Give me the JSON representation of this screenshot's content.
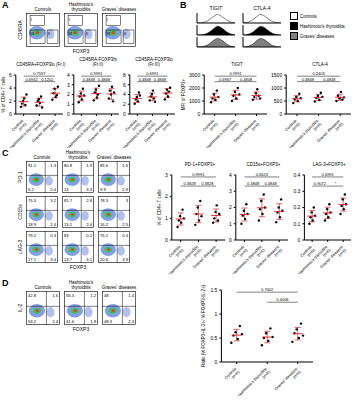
{
  "panels": [
    "A",
    "B",
    "C",
    "D"
  ],
  "flow": [
    {
      "samples": [
        "Controls",
        "Hashimoto's thyroiditis",
        "Graves' diseases"
      ],
      "x_label": "FOXP3",
      "rows": [
        {
          "y_label": "CD45RA",
          "gates": [
            "I",
            "II",
            "III"
          ]
        }
      ]
    },
    {
      "samples": [
        "Controls",
        "Hashimoto's thyroiditis",
        "Graves' diseases"
      ],
      "x_label": "FOXP3",
      "rows": [
        {
          "y_label": "PD-1",
          "quadrants": [
            [
              91.1,
              1.3,
              5.2,
              2.4
            ],
            [
              80.8,
              1.9,
              14.0,
              3.3
            ],
            [
              85.6,
              1.6,
              9.9,
              2.9
            ]
          ]
        },
        {
          "y_label": "CD15s",
          "quadrants": [
            [
              75.5,
              3.2,
              18.9,
              2.4
            ],
            [
              81.7,
              2.8,
              13.1,
              2.4
            ],
            [
              78.3,
              3.0,
              16.2,
              2.5
            ]
          ]
        },
        {
          "y_label": "LAG-3",
          "quadrants": [
            [
              79.2,
              0.3,
              17.1,
              3.4
            ],
            [
              83.0,
              0.2,
              13.7,
              3.1
            ],
            [
              75.1,
              0.4,
              20.6,
              3.9
            ]
          ]
        }
      ]
    },
    {
      "samples": [
        "Controls",
        "Hashimoto's thyroiditis",
        "Graves' diseases"
      ],
      "x_label": "FOXP3",
      "rows": [
        {
          "y_label": "IL-2",
          "quadrants": [
            [
              42.8,
              1.6,
              53.2,
              2.4
            ],
            [
              55.3,
              1.2,
              41.6,
              1.9
            ],
            [
              48.0,
              1.4,
              48.3,
              2.3
            ]
          ]
        }
      ]
    }
  ],
  "histograms": [
    {
      "type": "area",
      "title": "TIGIT",
      "tick_labels": false,
      "x": [
        1,
        2,
        3,
        4,
        5,
        6,
        7,
        8,
        9,
        10,
        11,
        12
      ],
      "xlim": [
        1,
        12
      ],
      "ylim": [
        0,
        10
      ],
      "series": [
        {
          "name": "Controls",
          "color": "#ffffff",
          "values": [
            0,
            0.2,
            0.8,
            2,
            4.5,
            7,
            8.5,
            7,
            4.5,
            2,
            0.7,
            0.1
          ]
        },
        {
          "name": "Hashimoto's thyroiditis",
          "color": "#000000",
          "values": [
            0,
            0.1,
            0.6,
            1.8,
            4,
            6.8,
            8.8,
            7.4,
            4.8,
            2.2,
            0.8,
            0.1
          ]
        },
        {
          "name": "Graves' diseases",
          "color": "#808080",
          "values": [
            0,
            0.2,
            0.7,
            1.9,
            4.3,
            7.1,
            8.6,
            7.2,
            4.6,
            2.1,
            0.7,
            0.1
          ]
        }
      ]
    },
    {
      "type": "area",
      "title": "CTLA-4",
      "tick_labels": false,
      "x": [
        1,
        2,
        3,
        4,
        5,
        6,
        7,
        8,
        9,
        10,
        11,
        12
      ],
      "xlim": [
        1,
        12
      ],
      "ylim": [
        0,
        10
      ],
      "series": [
        {
          "name": "Controls",
          "color": "#ffffff",
          "values": [
            0,
            0.4,
            1.5,
            3.5,
            6.5,
            8.5,
            7.5,
            5,
            2.5,
            1,
            0.3,
            0
          ]
        },
        {
          "name": "Hashimoto's thyroiditis",
          "color": "#000000",
          "values": [
            0,
            0.3,
            1.3,
            3.2,
            6.2,
            8.6,
            7.8,
            5.3,
            2.7,
            1.1,
            0.3,
            0
          ]
        },
        {
          "name": "Graves' diseases",
          "color": "#808080",
          "values": [
            0,
            0.3,
            1.4,
            3.3,
            6.4,
            8.4,
            7.7,
            5.2,
            2.6,
            1,
            0.3,
            0
          ]
        }
      ]
    }
  ],
  "chart_data": [
    {
      "type": "scatter",
      "title": "CD45RA+FOXP3lo (Fr.I)",
      "y_label": "% of CD4+ T cells",
      "categories": [
        "Controls (n=6)",
        "Hashimoto's thyroiditis (n=6)",
        "Graves' diseases (n=6)"
      ],
      "color": "#000000",
      "values": [
        [
          1.1,
          1.6,
          2.0,
          2.4,
          1.4,
          3.0
        ],
        [
          1.3,
          2.0,
          2.3,
          1.7,
          2.7,
          1.0
        ],
        [
          2.2,
          3.2,
          3.9,
          2.6,
          2.9,
          4.2
        ]
      ],
      "means": [
        1.9,
        1.8,
        3.2
      ],
      "sd": [
        0.7,
        0.6,
        0.7
      ],
      "ylim": [
        0,
        6
      ],
      "yticks": [
        0,
        2,
        4,
        6
      ],
      "annotations": [
        {
          "from": 0,
          "to": 2,
          "label": "0.7597"
        },
        {
          "from": 0,
          "to": 1,
          "label": "0.6942"
        },
        {
          "from": 1,
          "to": 2,
          "label": "0.1202"
        }
      ]
    },
    {
      "type": "scatter",
      "title": "CD45RA-FOXP3hi (Fr.II)",
      "categories": [
        "Controls (n=6)",
        "Hashimoto's thyroiditis (n=6)",
        "Graves' diseases (n=6)"
      ],
      "color": "#000000",
      "values": [
        [
          1.2,
          1.8,
          2.1,
          1.5,
          2.6,
          1.9
        ],
        [
          1.4,
          2.2,
          2.5,
          1.7,
          2.0,
          2.9
        ],
        [
          1.6,
          2.4,
          2.0,
          2.8,
          1.3,
          2.2
        ]
      ],
      "means": [
        1.85,
        2.1,
        2.05
      ],
      "sd": [
        0.5,
        0.55,
        0.55
      ],
      "ylim": [
        0,
        4
      ],
      "yticks": [
        0,
        1,
        2,
        3,
        4
      ],
      "annotations": [
        {
          "from": 0,
          "to": 2,
          "label": "0.9991"
        },
        {
          "from": 0,
          "to": 1,
          "label": "0.4848"
        },
        {
          "from": 1,
          "to": 2,
          "label": "0.4848"
        }
      ]
    },
    {
      "type": "scatter",
      "title": "CD45RA-FOXP3lo (Fr.III)",
      "categories": [
        "Controls (n=6)",
        "Hashimoto's thyroiditis (n=6)",
        "Graves' diseases (n=6)"
      ],
      "color": "#000000",
      "values": [
        [
          2.1,
          3.0,
          3.5,
          2.6,
          4.4,
          3.8
        ],
        [
          2.8,
          3.6,
          4.1,
          4.8,
          3.2,
          2.5
        ],
        [
          3.0,
          4.2,
          5.0,
          3.6,
          4.6,
          5.4
        ]
      ],
      "means": [
        3.2,
        3.5,
        4.3
      ],
      "sd": [
        0.8,
        0.8,
        0.9
      ],
      "ylim": [
        0,
        8
      ],
      "yticks": [
        0,
        2,
        4,
        6,
        8
      ],
      "annotations": [
        {
          "from": 0,
          "to": 2,
          "label": "0.6991"
        },
        {
          "from": 0,
          "to": 1,
          "label": "0.4848"
        },
        {
          "from": 1,
          "to": 2,
          "label": "0.4848"
        }
      ]
    },
    {
      "type": "scatter",
      "title": "TIGIT",
      "y_label": "MFI of FOXP3+",
      "categories": [
        "Controls (n=6)",
        "Hashimoto's thyroiditis (n=6)",
        "Graves' diseases (n=6)"
      ],
      "color": "#000000",
      "values": [
        [
          900,
          1200,
          1500,
          1100,
          1800,
          1300
        ],
        [
          1000,
          1400,
          1700,
          1200,
          2000,
          1500
        ],
        [
          1100,
          1300,
          1600,
          1900,
          1400,
          1200
        ]
      ],
      "means": [
        1300,
        1470,
        1420
      ],
      "sd": [
        300,
        350,
        280
      ],
      "ylim": [
        0,
        3000
      ],
      "yticks": [
        0,
        1000,
        2000,
        3000
      ],
      "annotations": [
        {
          "from": 0,
          "to": 2,
          "label": "0.9991"
        },
        {
          "from": 0,
          "to": 1,
          "label": "0.6967"
        },
        {
          "from": 1,
          "to": 2,
          "label": "0.4848"
        }
      ]
    },
    {
      "type": "scatter",
      "title": "CTLA-4",
      "categories": [
        "Controls (n=6)",
        "Hashimoto's thyroiditis (n=6)",
        "Graves' diseases (n=6)"
      ],
      "color": "#000000",
      "values": [
        [
          420,
          560,
          650,
          500,
          780,
          610
        ],
        [
          480,
          620,
          700,
          540,
          820,
          660
        ],
        [
          500,
          700,
          600,
          850,
          560,
          640
        ]
      ],
      "means": [
        587,
        637,
        642
      ],
      "sd": [
        120,
        120,
        120
      ],
      "ylim": [
        0,
        1500
      ],
      "yticks": [
        0,
        500,
        1000,
        1500
      ],
      "annotations": [
        {
          "from": 0,
          "to": 2,
          "label": "0.2403"
        },
        {
          "from": 0,
          "to": 1,
          "label": "0.4848"
        },
        {
          "from": 1,
          "to": 2,
          "label": "0.4848"
        }
      ]
    },
    {
      "type": "scatter",
      "title": "PD-1+FOXP3+",
      "y_label": "% of CD4+ T cells",
      "categories": [
        "Controls (n=6)",
        "Hashimoto's thyroiditis (n=6)",
        "Graves' diseases (n=6)"
      ],
      "color": "#000000",
      "values": [
        [
          0.6,
          0.9,
          1.1,
          0.8,
          1.4,
          1.0
        ],
        [
          0.7,
          1.2,
          1.5,
          0.9,
          1.8,
          1.1
        ],
        [
          0.8,
          1.0,
          1.3,
          1.6,
          0.9,
          1.2
        ]
      ],
      "means": [
        0.97,
        1.2,
        1.13
      ],
      "sd": [
        0.28,
        0.4,
        0.3
      ],
      "ylim": [
        0,
        3
      ],
      "yticks": [
        0,
        1,
        2,
        3
      ],
      "annotations": [
        {
          "from": 0,
          "to": 2,
          "label": "0.9991"
        },
        {
          "from": 0,
          "to": 1,
          "label": "0.3828"
        },
        {
          "from": 1,
          "to": 2,
          "label": "0.3828"
        }
      ]
    },
    {
      "type": "scatter",
      "title": "CD15s+FOXP3+",
      "categories": [
        "Controls (n=6)",
        "Hashimoto's thyroiditis (n=6)",
        "Graves' diseases (n=6)"
      ],
      "color": "#000000",
      "values": [
        [
          1.0,
          1.5,
          1.8,
          1.3,
          2.2,
          1.6
        ],
        [
          1.2,
          1.9,
          2.4,
          1.6,
          2.8,
          2.0
        ],
        [
          1.1,
          1.7,
          2.0,
          1.4,
          2.5,
          1.8
        ]
      ],
      "means": [
        1.57,
        1.98,
        1.75
      ],
      "sd": [
        0.4,
        0.55,
        0.48
      ],
      "ylim": [
        0,
        4
      ],
      "yticks": [
        0,
        1,
        2,
        3,
        4
      ],
      "annotations": [
        {
          "from": 0,
          "to": 2,
          "label": "0.6623"
        },
        {
          "from": 0,
          "to": 1,
          "label": "0.4848"
        },
        {
          "from": 1,
          "to": 2,
          "label": "0.4848"
        }
      ]
    },
    {
      "type": "scatter",
      "title": "LAG-3+FOXP3+",
      "categories": [
        "Controls (n=6)",
        "Hashimoto's thyroiditis (n=6)",
        "Graves' diseases (n=6)"
      ],
      "color": "#000000",
      "values": [
        [
          0.1,
          0.14,
          0.17,
          0.12,
          0.2,
          0.15
        ],
        [
          0.12,
          0.16,
          0.19,
          0.14,
          0.22,
          0.17
        ],
        [
          0.16,
          0.21,
          0.25,
          0.19,
          0.28,
          0.22
        ]
      ],
      "means": [
        0.147,
        0.167,
        0.218
      ],
      "sd": [
        0.035,
        0.035,
        0.04
      ],
      "ylim": [
        0,
        0.4
      ],
      "yticks": [
        0,
        0.1,
        0.2,
        0.3,
        0.4
      ],
      "annotations": [
        {
          "from": 0,
          "to": 2,
          "label": "0.6991"
        },
        {
          "from": 0,
          "to": 1,
          "label": "0.9072"
        },
        {
          "from": 1,
          "to": 2,
          "label": "*"
        }
      ]
    },
    {
      "type": "scatter",
      "y_label": "Ratio (% FOXP3+IL-2+/ % FOXP3-IL-2+)",
      "categories": [
        "Controls (n=6)",
        "Hashimoto's thyroiditis (n=6)",
        "Graves' diseases (n=6)"
      ],
      "color": "#000000",
      "values": [
        [
          0.4,
          0.55,
          0.62,
          0.48,
          0.75,
          0.58
        ],
        [
          0.35,
          0.5,
          0.6,
          0.44,
          0.7,
          0.52
        ],
        [
          0.42,
          0.6,
          0.68,
          0.5,
          0.8,
          0.55
        ]
      ],
      "means": [
        0.56,
        0.52,
        0.59
      ],
      "sd": [
        0.12,
        0.12,
        0.13
      ],
      "ylim": [
        0,
        1.5
      ],
      "yticks": [
        0,
        0.5,
        1,
        1.5
      ],
      "annotations": [
        {
          "from": 0,
          "to": 2,
          "label": "0.7002"
        },
        {
          "from": 1,
          "to": 2,
          "label": "0.4006"
        }
      ]
    }
  ]
}
